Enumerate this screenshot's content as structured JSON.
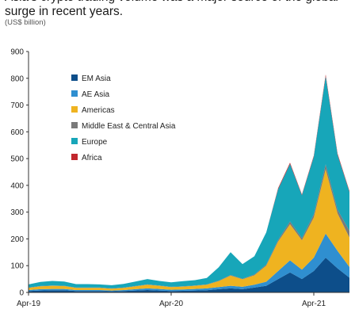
{
  "title": "Asia's crypto trading volume was a major source of the global surge in recent years.",
  "subtitle": "(US$ billion)",
  "chart_data": {
    "type": "area",
    "stacked": true,
    "title": "Asia's crypto trading volume was a major source of the global surge in recent years.",
    "subtitle": "(US$ billion)",
    "ylim": [
      0,
      900
    ],
    "yticks": [
      0,
      100,
      200,
      300,
      400,
      500,
      600,
      700,
      800,
      900
    ],
    "xticks": [
      {
        "label": "Apr-19",
        "index": 0
      },
      {
        "label": "Apr-20",
        "index": 12
      },
      {
        "label": "Apr-21",
        "index": 24
      }
    ],
    "x": [
      "Apr-19",
      "May-19",
      "Jun-19",
      "Jul-19",
      "Aug-19",
      "Sep-19",
      "Oct-19",
      "Nov-19",
      "Dec-19",
      "Jan-20",
      "Feb-20",
      "Mar-20",
      "Apr-20",
      "May-20",
      "Jun-20",
      "Jul-20",
      "Aug-20",
      "Sep-20",
      "Oct-20",
      "Nov-20",
      "Dec-20",
      "Jan-21",
      "Feb-21",
      "Mar-21",
      "Apr-21",
      "May-21",
      "Jun-21",
      "Jul-21"
    ],
    "grid": false,
    "legend_position": "top-left",
    "series": [
      {
        "name": "EM Asia",
        "color": "#0d4e8a",
        "values": [
          5,
          7,
          8,
          8,
          5,
          5,
          5,
          4,
          5,
          7,
          9,
          7,
          5,
          6,
          7,
          8,
          12,
          15,
          12,
          18,
          25,
          50,
          75,
          50,
          80,
          130,
          90,
          55
        ]
      },
      {
        "name": "AE Asia",
        "color": "#2f8fd0",
        "values": [
          4,
          5,
          5,
          5,
          4,
          4,
          4,
          3,
          4,
          5,
          6,
          6,
          5,
          5,
          6,
          7,
          8,
          10,
          9,
          11,
          15,
          30,
          45,
          35,
          50,
          90,
          65,
          40
        ]
      },
      {
        "name": "Americas",
        "color": "#efb320",
        "values": [
          8,
          11,
          12,
          11,
          8,
          8,
          8,
          7,
          8,
          11,
          14,
          12,
          10,
          11,
          12,
          14,
          22,
          38,
          28,
          35,
          60,
          110,
          135,
          110,
          150,
          240,
          140,
          110
        ]
      },
      {
        "name": "Middle East & Central Asia",
        "color": "#7a7a7a",
        "values": [
          1,
          1,
          1,
          1,
          1,
          1,
          1,
          1,
          1,
          1,
          1,
          1,
          1,
          1,
          1,
          1,
          2,
          2,
          2,
          3,
          4,
          6,
          10,
          8,
          12,
          18,
          14,
          25
        ]
      },
      {
        "name": "Europe",
        "color": "#17a6b9",
        "values": [
          12,
          15,
          17,
          16,
          13,
          13,
          12,
          12,
          14,
          17,
          20,
          17,
          17,
          19,
          20,
          24,
          50,
          85,
          55,
          68,
          120,
          190,
          215,
          160,
          215,
          330,
          205,
          145
        ]
      },
      {
        "name": "Africa",
        "color": "#c1272d",
        "values": [
          0,
          0,
          0,
          0,
          0,
          0,
          0,
          0,
          0,
          0,
          0,
          0,
          0,
          0,
          0,
          0,
          0,
          0,
          0,
          0,
          0,
          4,
          5,
          3,
          4,
          6,
          5,
          4
        ]
      }
    ]
  }
}
